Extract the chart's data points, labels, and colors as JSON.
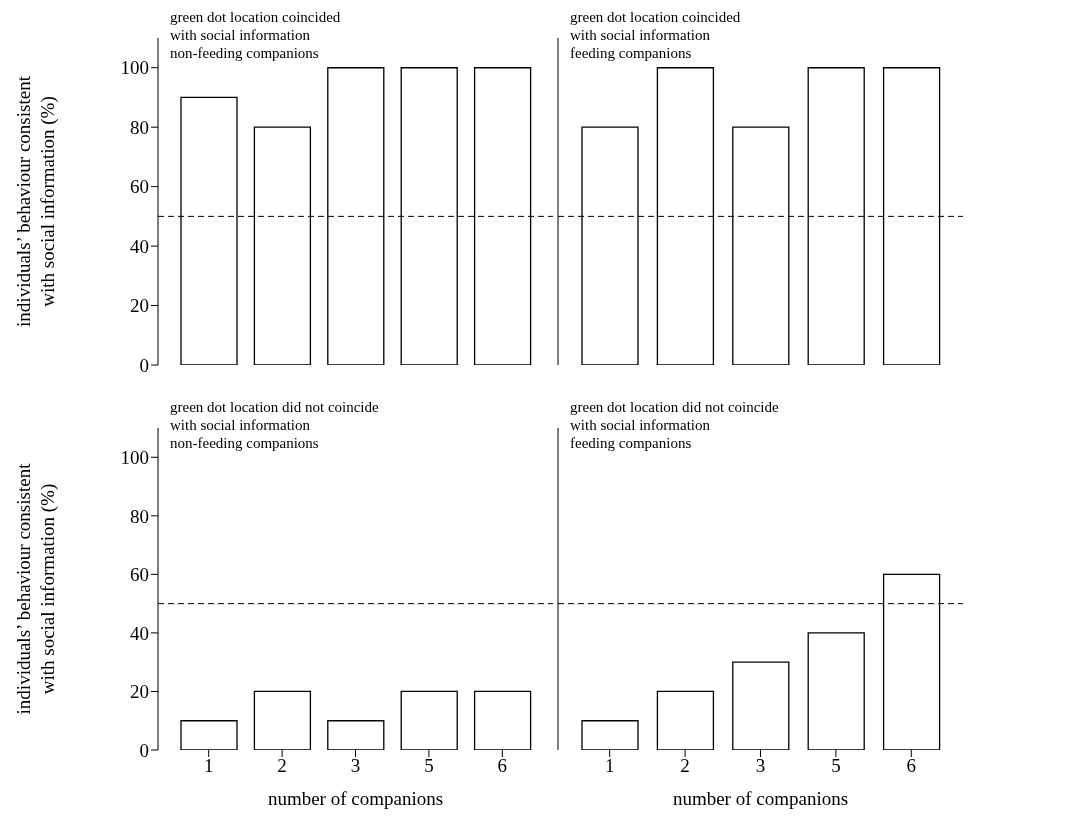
{
  "chart_data": [
    {
      "type": "bar",
      "categories": [
        "1",
        "2",
        "3",
        "5",
        "6"
      ],
      "values": [
        90,
        80,
        100,
        100,
        100
      ],
      "color": "#ffffff",
      "ylim": [
        0,
        110
      ],
      "yticks": [
        0,
        20,
        40,
        60,
        80,
        100
      ],
      "ylabel": "individuals’ behaviour consistent\nwith social information (%)",
      "annotations": [
        "green dot location coincided",
        "with social information",
        "non-feeding companions"
      ],
      "ref_lines": [
        {
          "axis": "y",
          "value": 50,
          "line_style": "dashed"
        }
      ],
      "tick_labels": "y"
    },
    {
      "type": "bar",
      "categories": [
        "1",
        "2",
        "3",
        "5",
        "6"
      ],
      "values": [
        80,
        100,
        80,
        100,
        100
      ],
      "color": "#ffffff",
      "ylim": [
        0,
        110
      ],
      "yticks": [
        0,
        20,
        40,
        60,
        80,
        100
      ],
      "annotations": [
        "green dot location coincided",
        "with social information",
        "feeding companions"
      ],
      "ref_lines": [
        {
          "axis": "y",
          "value": 50,
          "line_style": "dashed"
        }
      ],
      "tick_labels": false
    },
    {
      "type": "bar",
      "categories": [
        "1",
        "2",
        "3",
        "5",
        "6"
      ],
      "values": [
        10,
        20,
        10,
        20,
        20
      ],
      "color": "#ffffff",
      "ylim": [
        0,
        110
      ],
      "yticks": [
        0,
        20,
        40,
        60,
        80,
        100
      ],
      "xlabel": "number of companions",
      "ylabel": "individuals’ behaviour consistent\nwith social information (%)",
      "annotations": [
        "green dot location did not coincide",
        "with social information",
        "non-feeding companions"
      ],
      "ref_lines": [
        {
          "axis": "y",
          "value": 50,
          "line_style": "dashed"
        }
      ]
    },
    {
      "type": "bar",
      "categories": [
        "1",
        "2",
        "3",
        "5",
        "6"
      ],
      "values": [
        10,
        20,
        30,
        40,
        60
      ],
      "color": "#ffffff",
      "ylim": [
        0,
        110
      ],
      "yticks": [
        0,
        20,
        40,
        60,
        80,
        100
      ],
      "xlabel": "number of companions",
      "annotations": [
        "green dot location did not coincide",
        "with social information",
        "feeding companions"
      ],
      "ref_lines": [
        {
          "axis": "y",
          "value": 50,
          "line_style": "dashed"
        }
      ],
      "tick_labels": "x"
    }
  ]
}
